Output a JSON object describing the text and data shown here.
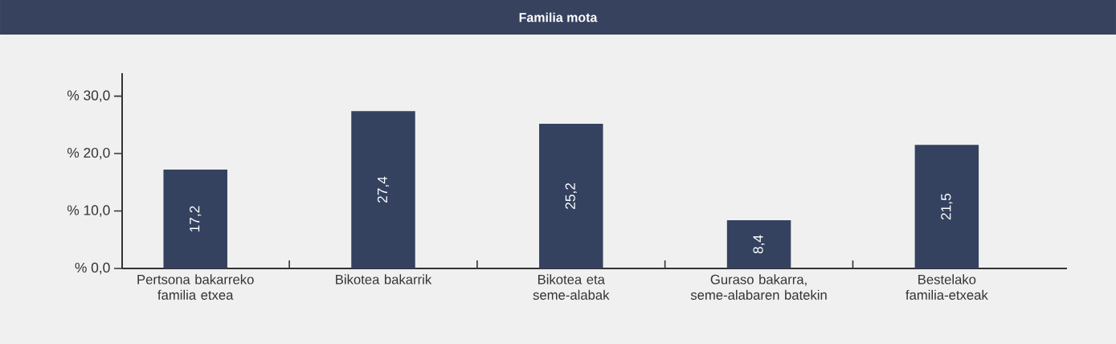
{
  "chart_data": {
    "type": "bar",
    "title": "Familia mota",
    "categories": [
      "Pertsona bakarreko familia etxea",
      "Bikotea bakarrik",
      "Bikotea eta seme-alabak",
      "Guraso bakarra, seme-alabaren batekin",
      "Bestelako familia-etxeak"
    ],
    "values": [
      17.2,
      27.4,
      25.2,
      8.4,
      21.5
    ],
    "value_labels": [
      "17,2",
      "27,4",
      "25,2",
      "8,4",
      "21,5"
    ],
    "color": "#344260",
    "ylim": [
      0,
      34
    ],
    "yticks": [
      {
        "value": 0,
        "label": "% 0,0"
      },
      {
        "value": 10,
        "label": "% 10,0"
      },
      {
        "value": 20,
        "label": "% 20,0"
      },
      {
        "value": 30,
        "label": "% 30,0"
      }
    ],
    "grid": false
  }
}
